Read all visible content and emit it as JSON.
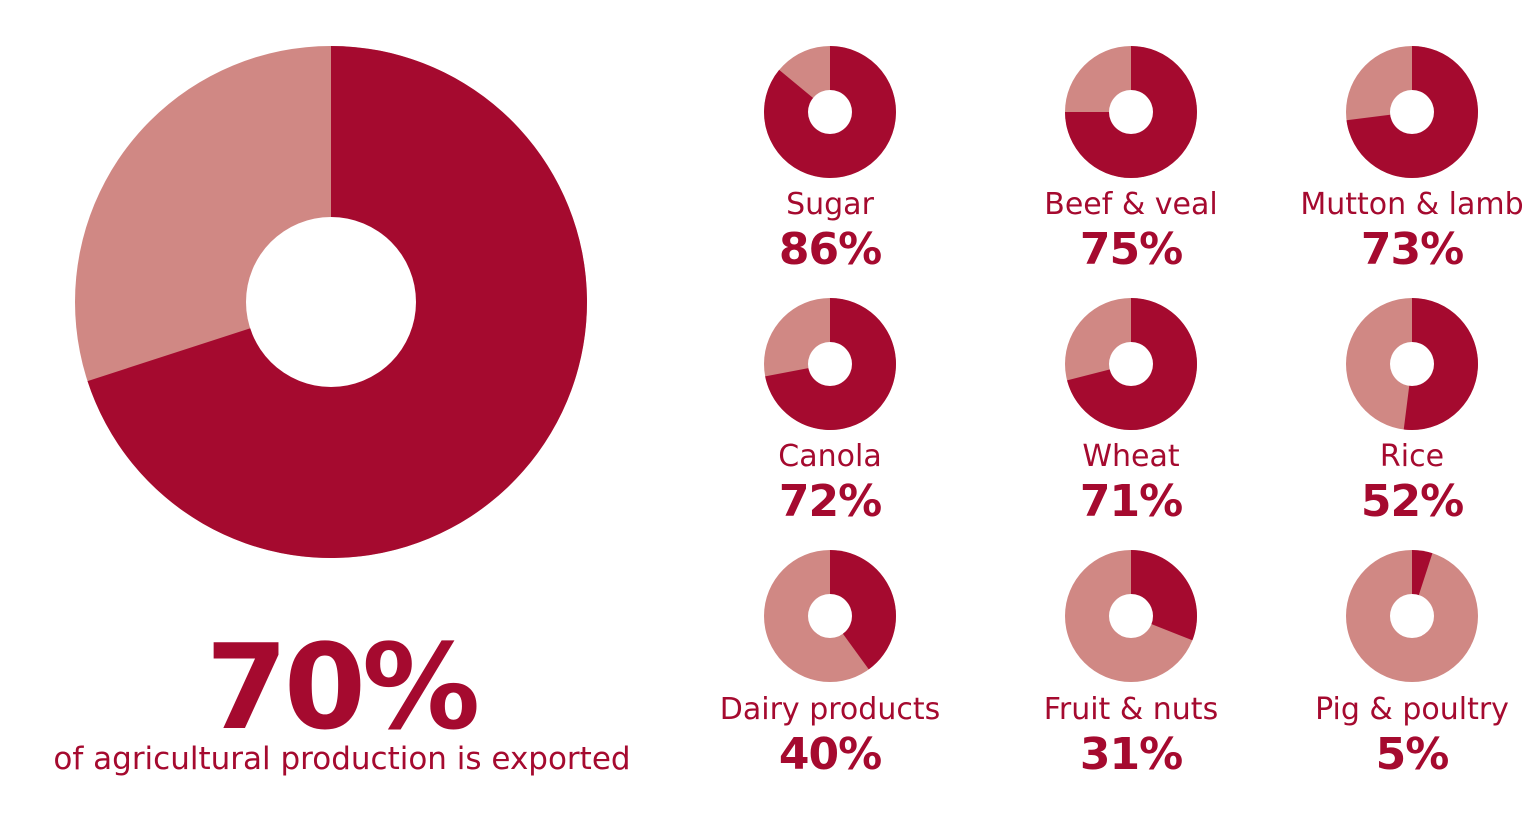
{
  "colors": {
    "exported": "#a50a2f",
    "not_exported": "#d08884",
    "hole": "#ffffff",
    "text": "#a50a2f"
  },
  "main": {
    "value": 70,
    "value_label": "70%",
    "caption": "of agricultural production is exported"
  },
  "chart_data": {
    "type": "pie",
    "charts": [
      {
        "label": "",
        "value": 70
      },
      {
        "label": "Sugar",
        "value": 86
      },
      {
        "label": "Beef & veal",
        "value": 75
      },
      {
        "label": "Mutton & lamb",
        "value": 73
      },
      {
        "label": "Canola",
        "value": 72
      },
      {
        "label": "Wheat",
        "value": 71
      },
      {
        "label": "Rice",
        "value": 52
      },
      {
        "label": "Dairy products",
        "value": 40
      },
      {
        "label": "Fruit & nuts",
        "value": 31
      },
      {
        "label": "Pig & poultry",
        "value": 5
      }
    ]
  },
  "items": [
    {
      "name": "Sugar",
      "value_label": "86%"
    },
    {
      "name": "Beef & veal",
      "value_label": "75%"
    },
    {
      "name": "Mutton & lamb",
      "value_label": "73%"
    },
    {
      "name": "Canola",
      "value_label": "72%"
    },
    {
      "name": "Wheat",
      "value_label": "71%"
    },
    {
      "name": "Rice",
      "value_label": "52%"
    },
    {
      "name": "Dairy products",
      "value_label": "40%"
    },
    {
      "name": "Fruit & nuts",
      "value_label": "31%"
    },
    {
      "name": "Pig & poultry",
      "value_label": "5%"
    }
  ]
}
